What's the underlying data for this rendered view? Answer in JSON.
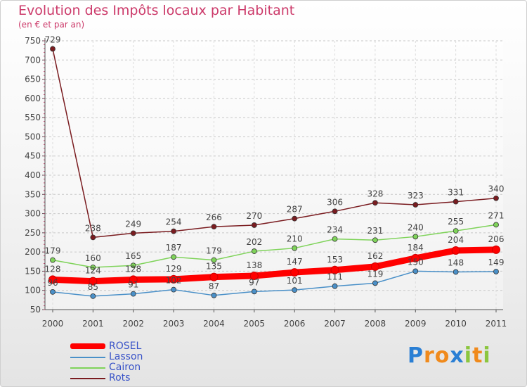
{
  "chart_data": {
    "type": "line",
    "title": "Evolution des Impôts locaux par Habitant",
    "subtitle": "(en € et par an)",
    "x": [
      "2000",
      "2001",
      "2002",
      "2003",
      "2004",
      "2005",
      "2006",
      "2007",
      "2008",
      "2009",
      "2010",
      "2011"
    ],
    "ylim": [
      50,
      750
    ],
    "yticks": [
      50,
      100,
      150,
      200,
      250,
      300,
      350,
      400,
      450,
      500,
      550,
      600,
      650,
      700,
      750
    ],
    "grid": true,
    "series": [
      {
        "name": "ROSEL",
        "color": "#ff0000",
        "values": [
          128,
          124,
          128,
          129,
          135,
          138,
          147,
          153,
          162,
          184,
          204,
          206
        ],
        "labels": [
          "128",
          "124",
          "128",
          "129",
          "135",
          "138",
          "147",
          "153",
          "162",
          "184",
          "204",
          "206"
        ]
      },
      {
        "name": "Lasson",
        "color": "#4a90c8",
        "values": [
          96,
          85,
          91,
          102,
          87,
          97,
          101,
          111,
          119,
          150,
          148,
          149
        ],
        "labels": [
          "96",
          "85",
          "91",
          "102",
          "87",
          "97",
          "101",
          "111",
          "119",
          "150",
          "148",
          "149"
        ]
      },
      {
        "name": "Cairon",
        "color": "#7fd35a",
        "values": [
          179,
          160,
          165,
          187,
          179,
          202,
          210,
          234,
          231,
          240,
          255,
          271
        ],
        "labels": [
          "179",
          "160",
          "165",
          "187",
          "179",
          "202",
          "210",
          "234",
          "231",
          "240",
          "255",
          "271"
        ]
      },
      {
        "name": "Rots",
        "color": "#7a1c20",
        "values": [
          729,
          238,
          249,
          254,
          266,
          270,
          287,
          306,
          328,
          323,
          331,
          340
        ],
        "labels": [
          "729",
          "238",
          "249",
          "254",
          "266",
          "270",
          "287",
          "306",
          "328",
          "323",
          "331",
          "340"
        ]
      }
    ]
  },
  "legend": {
    "items": [
      "ROSEL",
      "Lasson",
      "Cairon",
      "Rots"
    ]
  },
  "brand": {
    "letters": [
      "P",
      "r",
      "o",
      "x",
      "i",
      "t",
      "i"
    ],
    "colors": [
      "#2a7fd4",
      "#f08a1c",
      "#f08a1c",
      "#2a7fd4",
      "#8cc63f",
      "#f08a1c",
      "#8cc63f"
    ]
  }
}
